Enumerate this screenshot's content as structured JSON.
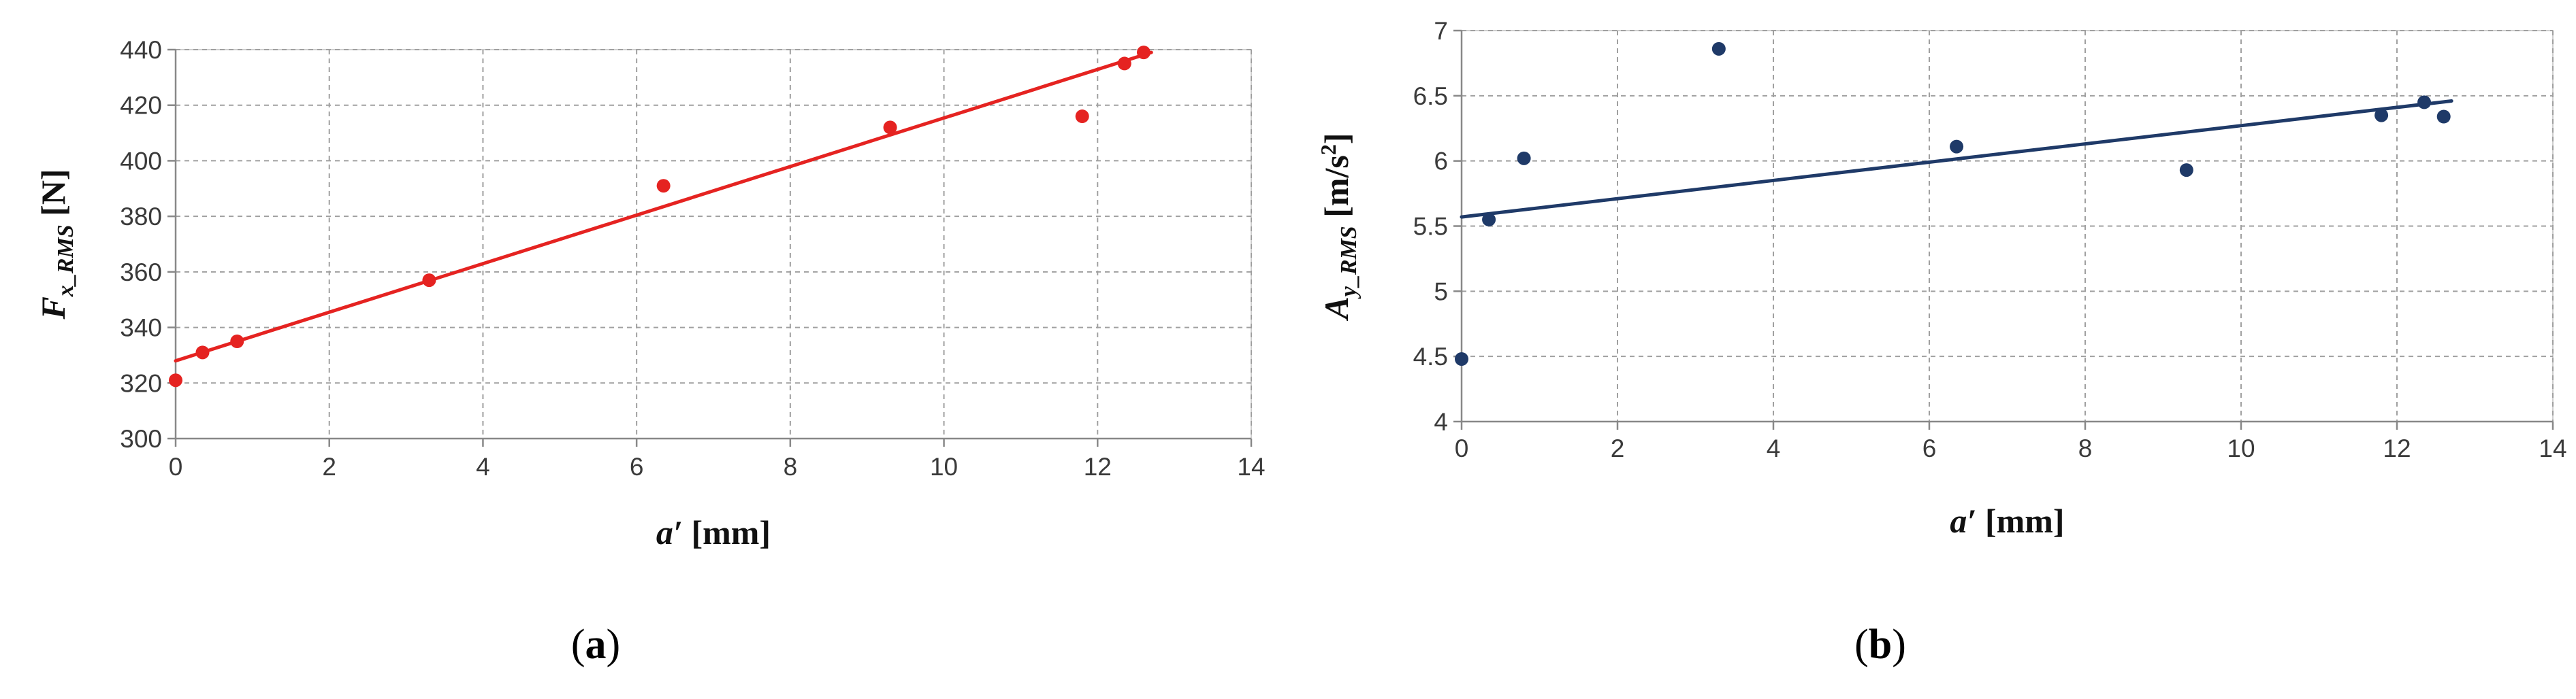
{
  "chart_data": [
    {
      "type": "scatter",
      "caption": {
        "open": "(",
        "letter": "a",
        "close": ")"
      },
      "xlabel": {
        "main": "a′",
        "unit": " [mm]"
      },
      "ylabel": {
        "main": "F",
        "sub": "x_RMS",
        "unit": " [N]"
      },
      "xlim": [
        0,
        14
      ],
      "ylim": [
        300,
        440
      ],
      "xticks": [
        0,
        2,
        4,
        6,
        8,
        10,
        12,
        14
      ],
      "yticks": [
        300,
        320,
        340,
        360,
        380,
        400,
        420,
        440
      ],
      "grid": true,
      "color": "#e52321",
      "points": [
        {
          "x": 0.0,
          "y": 321
        },
        {
          "x": 0.35,
          "y": 331
        },
        {
          "x": 0.8,
          "y": 335
        },
        {
          "x": 3.3,
          "y": 357
        },
        {
          "x": 6.35,
          "y": 391
        },
        {
          "x": 9.3,
          "y": 412
        },
        {
          "x": 11.8,
          "y": 416
        },
        {
          "x": 12.35,
          "y": 435
        },
        {
          "x": 12.6,
          "y": 439
        }
      ],
      "trendline": {
        "x0": 0.0,
        "y0": 328,
        "x1": 12.7,
        "y1": 439
      }
    },
    {
      "type": "scatter",
      "caption": {
        "open": "(",
        "letter": "b",
        "close": ")"
      },
      "xlabel": {
        "main": "a′",
        "unit": " [mm]"
      },
      "ylabel": {
        "main": "A",
        "sub": "y_RMS",
        "unit": " [m/s",
        "sup": "2",
        "unit_end": "]"
      },
      "xlim": [
        0,
        14
      ],
      "ylim": [
        4,
        7
      ],
      "xticks": [
        0,
        2,
        4,
        6,
        8,
        10,
        12,
        14
      ],
      "yticks": [
        4,
        4.5,
        5,
        5.5,
        6,
        6.5,
        7
      ],
      "grid": true,
      "color": "#1f3a68",
      "points": [
        {
          "x": 0.0,
          "y": 4.48
        },
        {
          "x": 0.35,
          "y": 5.55
        },
        {
          "x": 0.8,
          "y": 6.02
        },
        {
          "x": 3.3,
          "y": 6.86
        },
        {
          "x": 6.35,
          "y": 6.11
        },
        {
          "x": 9.3,
          "y": 5.93
        },
        {
          "x": 11.8,
          "y": 6.35
        },
        {
          "x": 12.35,
          "y": 6.45
        },
        {
          "x": 12.6,
          "y": 6.34
        }
      ],
      "trendline": {
        "x0": 0.0,
        "y0": 5.57,
        "x1": 12.7,
        "y1": 6.46
      }
    }
  ]
}
